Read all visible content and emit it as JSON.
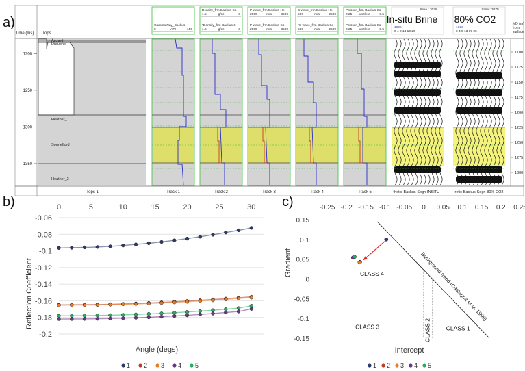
{
  "panel_labels": {
    "a": "a)",
    "b": "b)",
    "c": "c)"
  },
  "well_panel": {
    "time_axis_label": "Time (ms)",
    "tops_header": "Tops",
    "md_axis_label": [
      "MD (m)",
      "from",
      "surface"
    ],
    "time_ticks": [
      "1200",
      "1250",
      "1300",
      "1350"
    ],
    "md_ticks": [
      "1100",
      "1125",
      "1150",
      "1175",
      "1200",
      "1225",
      "1250",
      "1275",
      "1300"
    ],
    "tops": [
      "Åsgard",
      "Draupne",
      "Heather_1",
      "Sognefjord",
      "Heather_2"
    ],
    "tracks": [
      {
        "footer": "Tops 1"
      },
      {
        "footer": "Track 1",
        "header": [
          {
            "name": "Gamma Ray_Backus",
            "min": "0",
            "unit": "API",
            "max": "150"
          }
        ]
      },
      {
        "footer": "Track 2",
        "header": [
          {
            "name": "Density_frm-Backus-So",
            "min": "1.5",
            "unit": "g/cc",
            "max": "3"
          },
          {
            "name": "*Density_frm-Backus-S",
            "min": "1.5",
            "unit": "g/cc",
            "max": "3"
          }
        ]
      },
      {
        "footer": "Track 3",
        "header": [
          {
            "name": "P-wave_frm-Backus-He",
            "min": "2000",
            "unit": "m/s",
            "max": "3500"
          },
          {
            "name": "P-wave_frm-Backus-So",
            "min": "2000",
            "unit": "m/s",
            "max": "3500"
          }
        ]
      },
      {
        "footer": "Track 4",
        "header": [
          {
            "name": "S-wave_frm-Backus-He",
            "min": "500",
            "unit": "m/s",
            "max": "2500"
          },
          {
            "name": "*S-wave_frm-Backus-So",
            "min": "500",
            "unit": "m/s",
            "max": "2500"
          }
        ]
      },
      {
        "footer": "Track 5",
        "header": [
          {
            "name": "Poisson_frm-Backus-So",
            "min": "0.25",
            "unit": "unitless",
            "max": "0.5"
          },
          {
            "name": "Poisson_frm-Backus-So",
            "min": "0.25",
            "unit": "unitless",
            "max": "0.5"
          }
        ]
      }
    ],
    "seismic": [
      {
        "xline": "Xline : 3078",
        "title": "In-situ Brine",
        "trace_start": "1026",
        "offsets": "0  4  9  13  19  26",
        "footer": "thetic-Backus-Sogn-INSITU-:"
      },
      {
        "xline": "Xline : 3078",
        "title": "80% CO2",
        "trace_start": "1026",
        "offsets": "0  4  9 13  19  26",
        "footer": "retic-Backus-Sogn-80%-CO2"
      }
    ],
    "colors": {
      "grey_fill": "#d4d4d4",
      "reservoir": "#dede6a",
      "gr_curve": "#2d2dcc",
      "frm_curve": "#c43a1c",
      "green_border": "#55c455"
    }
  },
  "chart_data": [
    {
      "type": "scatter",
      "title": "",
      "xlabel": "Angle (degs)",
      "ylabel": "Reflection Coefficient",
      "xlim": [
        0,
        32
      ],
      "ylim": [
        -0.2,
        -0.06
      ],
      "xticks": [
        "0",
        "5",
        "10",
        "15",
        "20",
        "25",
        "30"
      ],
      "yticks": [
        "-0.06",
        "-0.08",
        "-0.1",
        "-0.12",
        "-0.14",
        "-0.16",
        "-0.18",
        "-0.2"
      ],
      "x": [
        0,
        2,
        4,
        6,
        8,
        10,
        12,
        14,
        16,
        18,
        20,
        22,
        24,
        26,
        28,
        30
      ],
      "series": [
        {
          "name": "1",
          "color": "#2b3a67",
          "values": [
            -0.0965,
            -0.0962,
            -0.0958,
            -0.0953,
            -0.0945,
            -0.0935,
            -0.0922,
            -0.0908,
            -0.0892,
            -0.0873,
            -0.0852,
            -0.0829,
            -0.0805,
            -0.0779,
            -0.0752,
            -0.0723
          ]
        },
        {
          "name": "2",
          "color": "#c0392b",
          "values": [
            -0.1648,
            -0.1647,
            -0.1646,
            -0.1644,
            -0.1641,
            -0.1637,
            -0.1632,
            -0.1626,
            -0.1619,
            -0.1611,
            -0.1603,
            -0.1594,
            -0.1584,
            -0.1574,
            -0.1563,
            -0.1552
          ]
        },
        {
          "name": "3",
          "color": "#e67e22",
          "values": [
            -0.1653,
            -0.1652,
            -0.1651,
            -0.1649,
            -0.1646,
            -0.1642,
            -0.1638,
            -0.1632,
            -0.1626,
            -0.1619,
            -0.1611,
            -0.1602,
            -0.1593,
            -0.1583,
            -0.1573,
            -0.1562
          ]
        },
        {
          "name": "4",
          "color": "#6c3483",
          "values": [
            -0.182,
            -0.1819,
            -0.1818,
            -0.1816,
            -0.1813,
            -0.1809,
            -0.1804,
            -0.1798,
            -0.1791,
            -0.1783,
            -0.1774,
            -0.1764,
            -0.1753,
            -0.1741,
            -0.1728,
            -0.1697
          ]
        },
        {
          "name": "5",
          "color": "#27ae60",
          "values": [
            -0.178,
            -0.1779,
            -0.1778,
            -0.1776,
            -0.1773,
            -0.1769,
            -0.1764,
            -0.1758,
            -0.1751,
            -0.1743,
            -0.1734,
            -0.1724,
            -0.1713,
            -0.1701,
            -0.1688,
            -0.166
          ]
        }
      ],
      "legend": {
        "position": "bottom",
        "entries": [
          "1",
          "2",
          "3",
          "4",
          "5"
        ]
      },
      "grid": true
    },
    {
      "type": "scatter",
      "title": "",
      "xlabel": "Intercept",
      "ylabel": "Gradient",
      "xlim": [
        -0.25,
        0.25
      ],
      "ylim": [
        -0.15,
        0.15
      ],
      "xticks": [
        "-0.25",
        "-0.2",
        "-0.15",
        "-0.1",
        "-0.05",
        "0",
        "0.05",
        "0.1",
        "0.15",
        "0.2",
        "0.25"
      ],
      "yticks": [
        "0.15",
        "0.1",
        "0.05",
        "0",
        "-0.05",
        "-0.1",
        "-0.15"
      ],
      "points": [
        {
          "series": "1",
          "x": -0.097,
          "y": 0.1,
          "color": "#2b3a67"
        },
        {
          "series": "2",
          "x": -0.165,
          "y": 0.043,
          "color": "#c0392b"
        },
        {
          "series": "3",
          "x": -0.166,
          "y": 0.042,
          "color": "#e67e22"
        },
        {
          "series": "4",
          "x": -0.183,
          "y": 0.054,
          "color": "#6c3483"
        },
        {
          "series": "5",
          "x": -0.179,
          "y": 0.056,
          "color": "#27ae60"
        }
      ],
      "arrow": {
        "from": [
          -0.101,
          0.095
        ],
        "to": [
          -0.156,
          0.048
        ],
        "color": "#e02020"
      },
      "background_trend": {
        "label": "Background trend (Castagna et al. 1998)",
        "x": [
          -0.12,
          0.17
        ],
        "y": [
          0.145,
          -0.15
        ]
      },
      "class_labels": [
        {
          "text": "CLASS 4",
          "x": -0.165,
          "y": 0.008
        },
        {
          "text": "CLASS 3",
          "x": -0.177,
          "y": -0.127
        },
        {
          "text": "CLASS 2",
          "x": 0.015,
          "y": -0.13
        },
        {
          "text": "CLASS 1",
          "x": 0.058,
          "y": -0.13
        }
      ],
      "class_lines": [
        {
          "x": 0.0
        },
        {
          "x": 0.023
        }
      ],
      "legend": {
        "position": "bottom",
        "entries": [
          "1",
          "2",
          "3",
          "4",
          "5"
        ]
      },
      "grid": false
    }
  ]
}
